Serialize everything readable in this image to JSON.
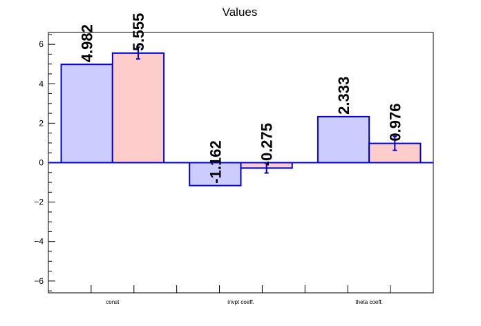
{
  "chart_data": {
    "type": "bar",
    "title": "Values",
    "categories": [
      "const",
      "invpt coeff.",
      "theta coeff."
    ],
    "series": [
      {
        "values": [
          4.982,
          -1.162,
          2.333
        ],
        "value_labels": [
          "4.982",
          "-1.162",
          "2.333"
        ],
        "errors": [
          0,
          0,
          0
        ],
        "fill": "#ccccff",
        "stroke": "#0000cc"
      },
      {
        "values": [
          5.555,
          -0.275,
          0.976
        ],
        "value_labels": [
          "5.555",
          "-0.275",
          "0.976"
        ],
        "errors": [
          0.3,
          0.25,
          0.35
        ],
        "fill": "#ffcccc",
        "stroke": "#0000cc"
      }
    ],
    "ylim": [
      -6.6,
      6.6
    ],
    "yticks": [
      -6,
      -4,
      -2,
      0,
      2,
      4,
      6
    ],
    "ytick_labels": [
      "−6",
      "−4",
      "−2",
      "0",
      "2",
      "4",
      "6"
    ],
    "grid": false,
    "legend": "none"
  }
}
